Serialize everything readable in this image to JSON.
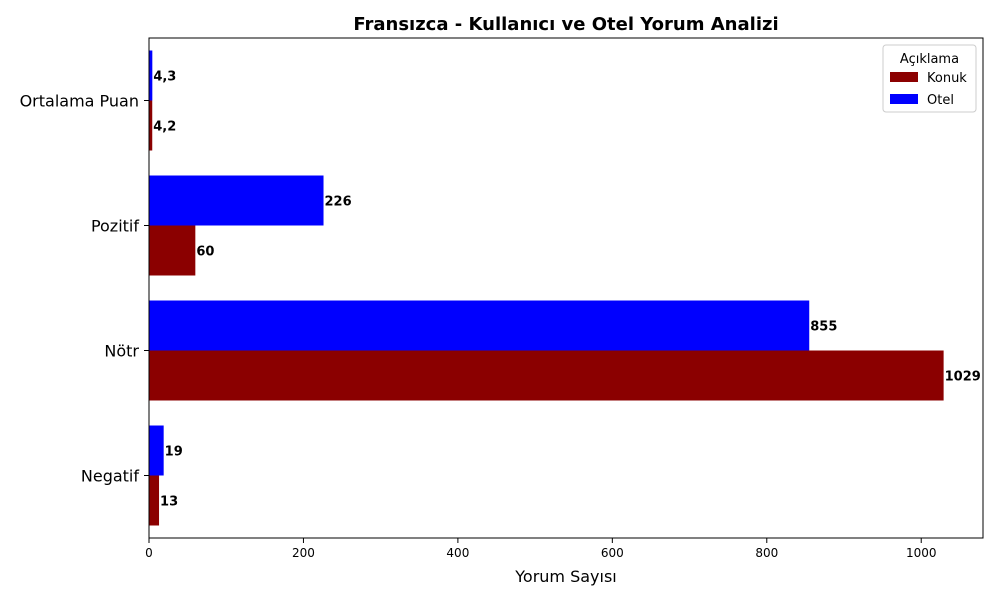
{
  "chart_data": {
    "type": "bar",
    "orientation": "horizontal",
    "title": "Fransızca - Kullanıcı ve Otel Yorum Analizi",
    "xlabel": "Yorum Sayısı",
    "ylabel": "",
    "categories": [
      "Ortalama Puan",
      "Pozitif",
      "Nötr",
      "Negatif"
    ],
    "xlim": [
      0,
      1080
    ],
    "x_ticks": [
      0,
      200,
      400,
      600,
      800,
      1000
    ],
    "grid": false,
    "legend": {
      "title": "Açıklama",
      "position": "top-right"
    },
    "series": [
      {
        "name": "Konuk",
        "color": "#8b0000",
        "values": [
          4.2,
          60,
          1029,
          13
        ],
        "labels": [
          "4,2",
          "60",
          "1029",
          "13"
        ]
      },
      {
        "name": "Otel",
        "color": "#0000ff",
        "values": [
          4.3,
          226,
          855,
          19
        ],
        "labels": [
          "4,3",
          "226",
          "855",
          "19"
        ]
      }
    ]
  }
}
